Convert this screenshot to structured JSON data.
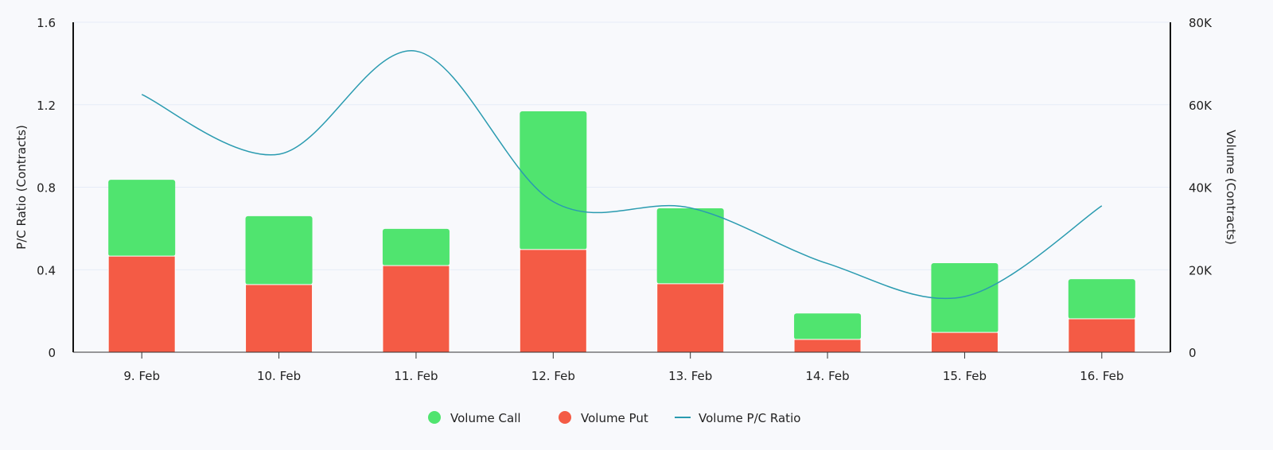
{
  "chart_data": {
    "type": "bar",
    "categories": [
      "9. Feb",
      "10. Feb",
      "11. Feb",
      "12. Feb",
      "13. Feb",
      "14. Feb",
      "15. Feb",
      "16. Feb"
    ],
    "series": [
      {
        "name": "Volume Call",
        "type": "stacked-bar",
        "axis": "right",
        "color": "#50e46f",
        "values": [
          18500,
          16600,
          8900,
          33500,
          18300,
          6300,
          16800,
          9600
        ]
      },
      {
        "name": "Volume Put",
        "type": "stacked-bar",
        "axis": "right",
        "color": "#f45b45",
        "values": [
          23300,
          16400,
          21000,
          24900,
          16600,
          3100,
          4800,
          8100
        ]
      },
      {
        "name": "Volume P/C Ratio",
        "type": "spline",
        "axis": "left",
        "color": "#2a9bb0",
        "values": [
          1.25,
          0.96,
          1.46,
          0.73,
          0.7,
          0.43,
          0.27,
          0.71
        ]
      }
    ],
    "yaxis_left": {
      "label": "P/C Ratio (Contracts)",
      "range": [
        0,
        1.6
      ],
      "ticks": [
        "0",
        "0.4",
        "0.8",
        "1.2",
        "1.6"
      ]
    },
    "yaxis_right": {
      "label": "Volume (Contracts)",
      "range": [
        0,
        80000
      ],
      "ticks": [
        "0",
        "20K",
        "40K",
        "60K",
        "80K"
      ]
    },
    "grid": true,
    "legend_placement": "bottom-center"
  }
}
